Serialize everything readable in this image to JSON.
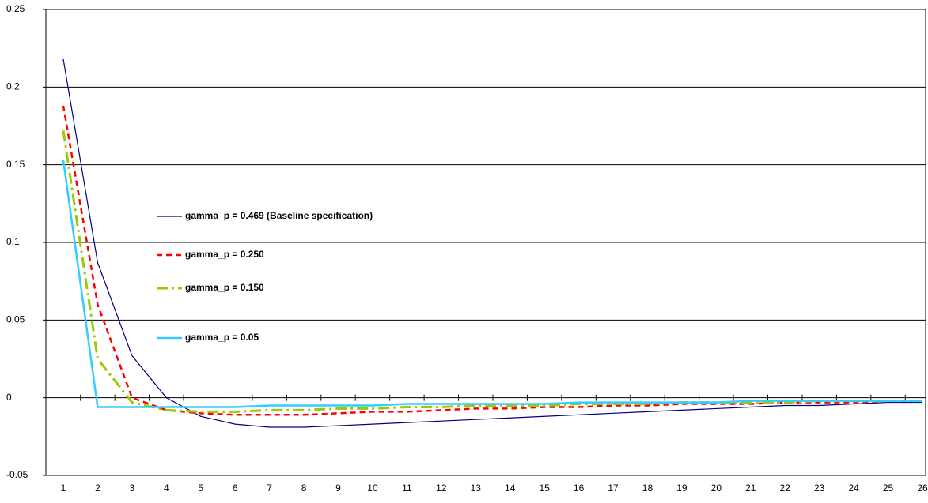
{
  "chart_data": {
    "type": "line",
    "categories": [
      "1",
      "2",
      "3",
      "4",
      "5",
      "6",
      "7",
      "8",
      "9",
      "10",
      "11",
      "12",
      "13",
      "14",
      "15",
      "16",
      "17",
      "18",
      "19",
      "20",
      "21",
      "22",
      "23",
      "24",
      "25",
      "26"
    ],
    "ylim": [
      -0.05,
      0.25
    ],
    "yticks": [
      -0.05,
      0,
      0.05,
      0.1,
      0.15,
      0.2,
      0.25
    ],
    "grid": true,
    "series": [
      {
        "name": "gamma_p = 0.469 (Baseline specification)",
        "color": "#000080",
        "style": "solid",
        "values": [
          0.218,
          0.087,
          0.027,
          0.0,
          -0.012,
          -0.017,
          -0.019,
          -0.019,
          -0.018,
          -0.017,
          -0.016,
          -0.015,
          -0.014,
          -0.013,
          -0.012,
          -0.011,
          -0.01,
          -0.009,
          -0.008,
          -0.007,
          -0.006,
          -0.005,
          -0.005,
          -0.004,
          -0.003,
          -0.003
        ]
      },
      {
        "name": "gamma_p = 0.250",
        "color": "#ff0000",
        "style": "dashed",
        "values": [
          0.188,
          0.06,
          0.0,
          -0.008,
          -0.01,
          -0.011,
          -0.011,
          -0.011,
          -0.01,
          -0.009,
          -0.009,
          -0.008,
          -0.007,
          -0.007,
          -0.006,
          -0.006,
          -0.005,
          -0.005,
          -0.004,
          -0.004,
          -0.004,
          -0.003,
          -0.003,
          -0.003,
          -0.002,
          -0.002
        ]
      },
      {
        "name": "gamma_p = 0.150",
        "color": "#99cc00",
        "style": "dashdot",
        "values": [
          0.172,
          0.025,
          -0.003,
          -0.008,
          -0.009,
          -0.009,
          -0.008,
          -0.008,
          -0.007,
          -0.007,
          -0.006,
          -0.006,
          -0.005,
          -0.005,
          -0.005,
          -0.004,
          -0.004,
          -0.004,
          -0.003,
          -0.003,
          -0.003,
          -0.003,
          -0.002,
          -0.002,
          -0.002,
          -0.002
        ]
      },
      {
        "name": "gamma_p = 0.05",
        "color": "#33ccff",
        "style": "solid-thick",
        "values": [
          0.153,
          -0.006,
          -0.006,
          -0.006,
          -0.006,
          -0.006,
          -0.005,
          -0.005,
          -0.005,
          -0.005,
          -0.004,
          -0.004,
          -0.004,
          -0.004,
          -0.004,
          -0.003,
          -0.003,
          -0.003,
          -0.003,
          -0.003,
          -0.002,
          -0.002,
          -0.002,
          -0.002,
          -0.002,
          -0.002
        ]
      }
    ]
  }
}
